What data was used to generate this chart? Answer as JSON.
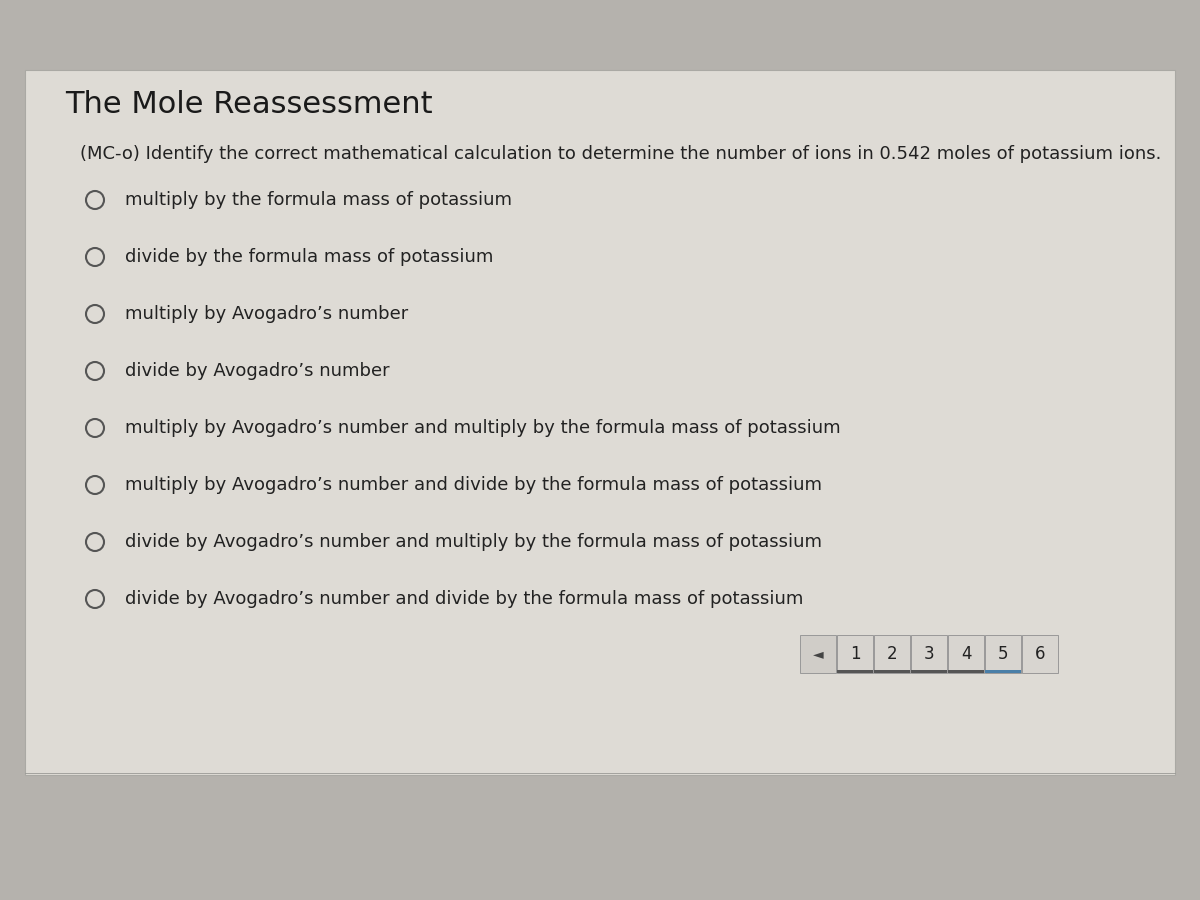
{
  "title": "The Mole Reassessment",
  "question": "(MC-o) Identify the correct mathematical calculation to determine the number of ions in 0.542 moles of potassium ions.",
  "options": [
    "multiply by the formula mass of potassium",
    "divide by the formula mass of potassium",
    "multiply by Avogadro’s number",
    "divide by Avogadro’s number",
    "multiply by Avogadro’s number and multiply by the formula mass of potassium",
    "multiply by Avogadro’s number and divide by the formula mass of potassium",
    "divide by Avogadro’s number and multiply by the formula mass of potassium",
    "divide by Avogadro’s number and divide by the formula mass of potassium"
  ],
  "page_numbers": [
    "1",
    "2",
    "3",
    "4",
    "5",
    "6"
  ],
  "current_page": 5,
  "outer_bg": "#b5b2ad",
  "content_bg": "#dedbd5",
  "title_color": "#1a1a1a",
  "question_color": "#222222",
  "option_color": "#222222",
  "circle_edge_color": "#555555",
  "nav_btn_bg": "#d8d5d0",
  "nav_btn_border": "#999999",
  "nav_active_underline": "#4a7fa8",
  "nav_inactive_underline": "#555555",
  "nav_text": "#222222",
  "nav_arrow_bg": "#d0cdc8"
}
